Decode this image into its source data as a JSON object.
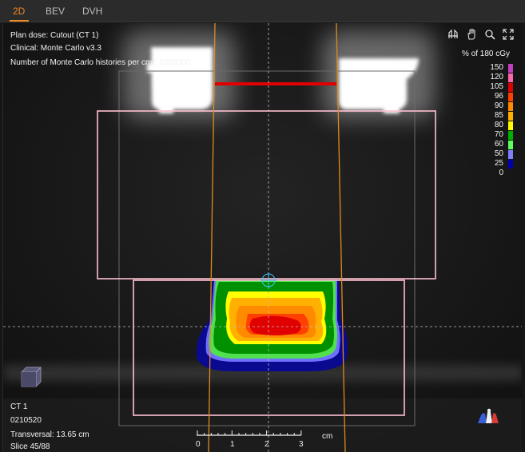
{
  "tabs": [
    {
      "label": "2D",
      "active": true
    },
    {
      "label": "BEV",
      "active": false
    },
    {
      "label": "DVH",
      "active": false
    }
  ],
  "info": {
    "plan_dose": "Plan dose: Cutout (CT 1)",
    "clinical": "Clinical: Monte Carlo v3.3",
    "histories": "Number of Monte Carlo histories per cm²: 1000000"
  },
  "toolbar": {
    "icons": [
      "beam-icon",
      "pan-hand-icon",
      "zoom-icon",
      "fit-screen-icon"
    ]
  },
  "legend": {
    "title": "% of 180 cGy",
    "levels": [
      {
        "label": "150",
        "color": "#c040c0"
      },
      {
        "label": "120",
        "color": "#ff66aa"
      },
      {
        "label": "105",
        "color": "#e00000"
      },
      {
        "label": "96",
        "color": "#ff4000"
      },
      {
        "label": "90",
        "color": "#ff8a00"
      },
      {
        "label": "85",
        "color": "#ffb000"
      },
      {
        "label": "80",
        "color": "#ffff00"
      },
      {
        "label": "70",
        "color": "#00b000"
      },
      {
        "label": "60",
        "color": "#60ff60"
      },
      {
        "label": "50",
        "color": "#8080ff"
      },
      {
        "label": "25",
        "color": "#0000b0"
      },
      {
        "label": "0",
        "color": ""
      }
    ]
  },
  "bottom_info": {
    "image": "CT 1",
    "id": "0210520",
    "plane": "Transversal: 13.65 cm",
    "slice": "Slice 45/88"
  },
  "scale": {
    "ticks": [
      "0",
      "1",
      "2",
      "3"
    ],
    "unit": "cm"
  },
  "colors": {
    "accent": "#f08a24",
    "contour": "#ffc0d0",
    "beam_edge": "#e08a20",
    "block": "#e00000"
  }
}
